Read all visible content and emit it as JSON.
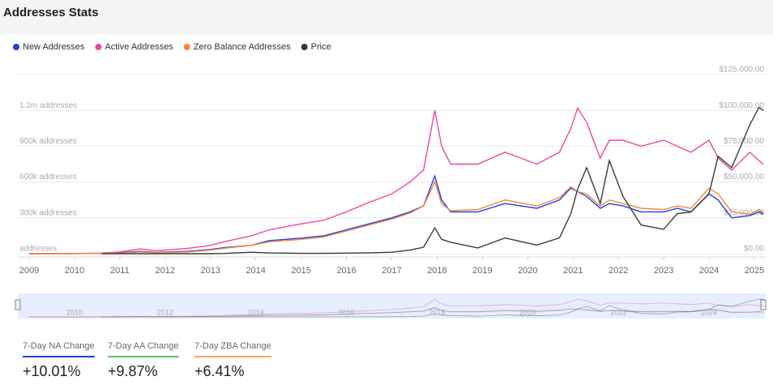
{
  "header": {
    "title": "Addresses Stats"
  },
  "chart_data": {
    "type": "line",
    "x": [
      2009.0,
      2010.0,
      2010.6,
      2011.0,
      2011.45,
      2011.8,
      2012.5,
      2013.0,
      2013.3,
      2013.9,
      2014.3,
      2015.0,
      2015.5,
      2016.0,
      2016.5,
      2017.0,
      2017.4,
      2017.7,
      2017.95,
      2018.1,
      2018.3,
      2018.9,
      2019.5,
      2020.2,
      2020.7,
      2020.95,
      2021.1,
      2021.3,
      2021.6,
      2021.8,
      2022.1,
      2022.5,
      2023.0,
      2023.3,
      2023.6,
      2024.0,
      2024.2,
      2024.5,
      2024.9,
      2025.1,
      2025.2
    ],
    "series": [
      {
        "name": "New Addresses",
        "color": "#1f3fe0",
        "values": [
          0,
          1000,
          3000,
          8000,
          20000,
          10000,
          20000,
          35000,
          50000,
          70000,
          110000,
          130000,
          150000,
          200000,
          250000,
          300000,
          350000,
          400000,
          650000,
          450000,
          350000,
          350000,
          420000,
          380000,
          450000,
          550000,
          520000,
          480000,
          380000,
          420000,
          400000,
          350000,
          350000,
          380000,
          350000,
          500000,
          450000,
          300000,
          320000,
          350000,
          330000
        ]
      },
      {
        "name": "Active Addresses",
        "color": "#f0459f",
        "values": [
          0,
          2000,
          5000,
          15000,
          40000,
          25000,
          45000,
          70000,
          100000,
          150000,
          200000,
          250000,
          280000,
          350000,
          430000,
          500000,
          600000,
          700000,
          1200000,
          900000,
          750000,
          750000,
          850000,
          750000,
          850000,
          1050000,
          1220000,
          1100000,
          800000,
          950000,
          950000,
          900000,
          950000,
          900000,
          850000,
          950000,
          800000,
          700000,
          850000,
          780000,
          750000
        ]
      },
      {
        "name": "Zero Balance Addresses",
        "color": "#f5873a",
        "values": [
          0,
          500,
          2000,
          5000,
          15000,
          8000,
          15000,
          30000,
          45000,
          70000,
          100000,
          120000,
          140000,
          190000,
          240000,
          290000,
          340000,
          400000,
          600000,
          420000,
          360000,
          370000,
          450000,
          400000,
          470000,
          560000,
          520000,
          500000,
          400000,
          450000,
          420000,
          380000,
          370000,
          400000,
          380000,
          550000,
          500000,
          350000,
          330000,
          370000,
          340000
        ]
      },
      {
        "name": "Price",
        "color": "#3a3a3a",
        "axis": "y2",
        "values": [
          null,
          null,
          0,
          1,
          20,
          4,
          7,
          15,
          150,
          1000,
          500,
          250,
          250,
          400,
          650,
          1000,
          2500,
          4500,
          18000,
          10000,
          8000,
          4000,
          11000,
          6000,
          11000,
          28000,
          45000,
          60000,
          35000,
          65000,
          40000,
          20000,
          17000,
          28000,
          29000,
          42000,
          68000,
          60000,
          90000,
          102000,
          100000
        ]
      }
    ],
    "xlim": [
      2008.75,
      2025.25
    ],
    "xticks": [
      2009,
      2010,
      2011,
      2012,
      2013,
      2014,
      2015,
      2016,
      2017,
      2018,
      2019,
      2020,
      2021,
      2022,
      2023,
      2024,
      2025
    ],
    "ylim": [
      0,
      1500000
    ],
    "yticks": [
      {
        "value": 0,
        "label": "addresses"
      },
      {
        "value": 300000,
        "label": "300k addresses"
      },
      {
        "value": 600000,
        "label": "600k addresses"
      },
      {
        "value": 900000,
        "label": "900k addresses"
      },
      {
        "value": 1200000,
        "label": "1.2m addresses"
      }
    ],
    "y2lim": [
      0,
      125000
    ],
    "y2ticks": [
      {
        "value": 0,
        "label": "$0.00"
      },
      {
        "value": 25000,
        "label": "$25,000.00"
      },
      {
        "value": 50000,
        "label": "$50,000.00"
      },
      {
        "value": 75000,
        "label": "$75,000.00"
      },
      {
        "value": 100000,
        "label": "$100,000.00"
      },
      {
        "value": 125000,
        "label": "$125,000.00"
      }
    ],
    "grid": true
  },
  "navigator": {
    "ticks": [
      2010,
      2012,
      2014,
      2016,
      2018,
      2020,
      2022,
      2024
    ]
  },
  "stats": [
    {
      "label": "7-Day NA Change",
      "value": "+10.01%",
      "color": "#1f3fe0"
    },
    {
      "label": "7-Day AA Change",
      "value": "+9.87%",
      "color": "#5cc15c"
    },
    {
      "label": "7-Day ZBA Change",
      "value": "+6.41%",
      "color": "#f5a55a"
    }
  ]
}
